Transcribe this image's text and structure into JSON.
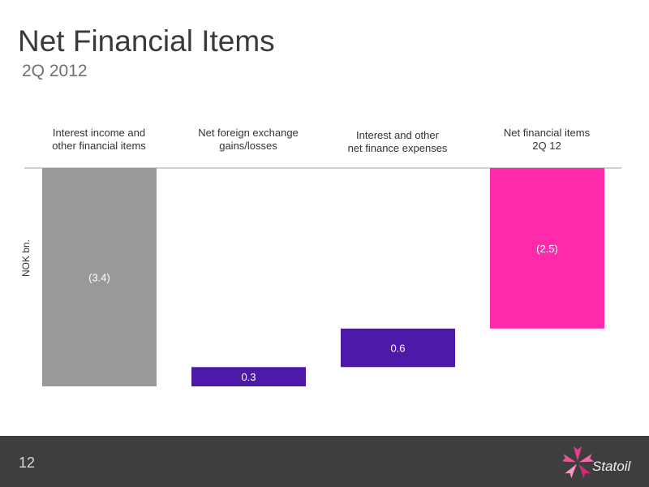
{
  "slide": {
    "title": "Net Financial Items",
    "subtitle": "2Q 2012",
    "page_number": "12",
    "logo_text": "Statoil"
  },
  "colors": {
    "gray_bar": "#999999",
    "purple_bar": "#4d19a8",
    "pink_bar": "#ff2bab",
    "baseline": "#a0a0a0"
  },
  "chart_data": {
    "type": "bar",
    "subtype": "waterfall",
    "ylabel": "NOK bn.",
    "categories": [
      "Interest income and\nother financial items",
      "Net foreign exchange\ngains/losses",
      "Interest and other\nnet finance expenses",
      "Net financial items\n2Q 12"
    ],
    "values": [
      -3.4,
      0.3,
      0.6,
      -2.5
    ],
    "data_labels": [
      "(3.4)",
      "0.3",
      "0.6",
      "(2.5)"
    ],
    "bar_colors": [
      "#999999",
      "#4d19a8",
      "#4d19a8",
      "#ff2bab"
    ],
    "ylim": [
      -3.4,
      0
    ],
    "grid": false,
    "legend": "none"
  }
}
